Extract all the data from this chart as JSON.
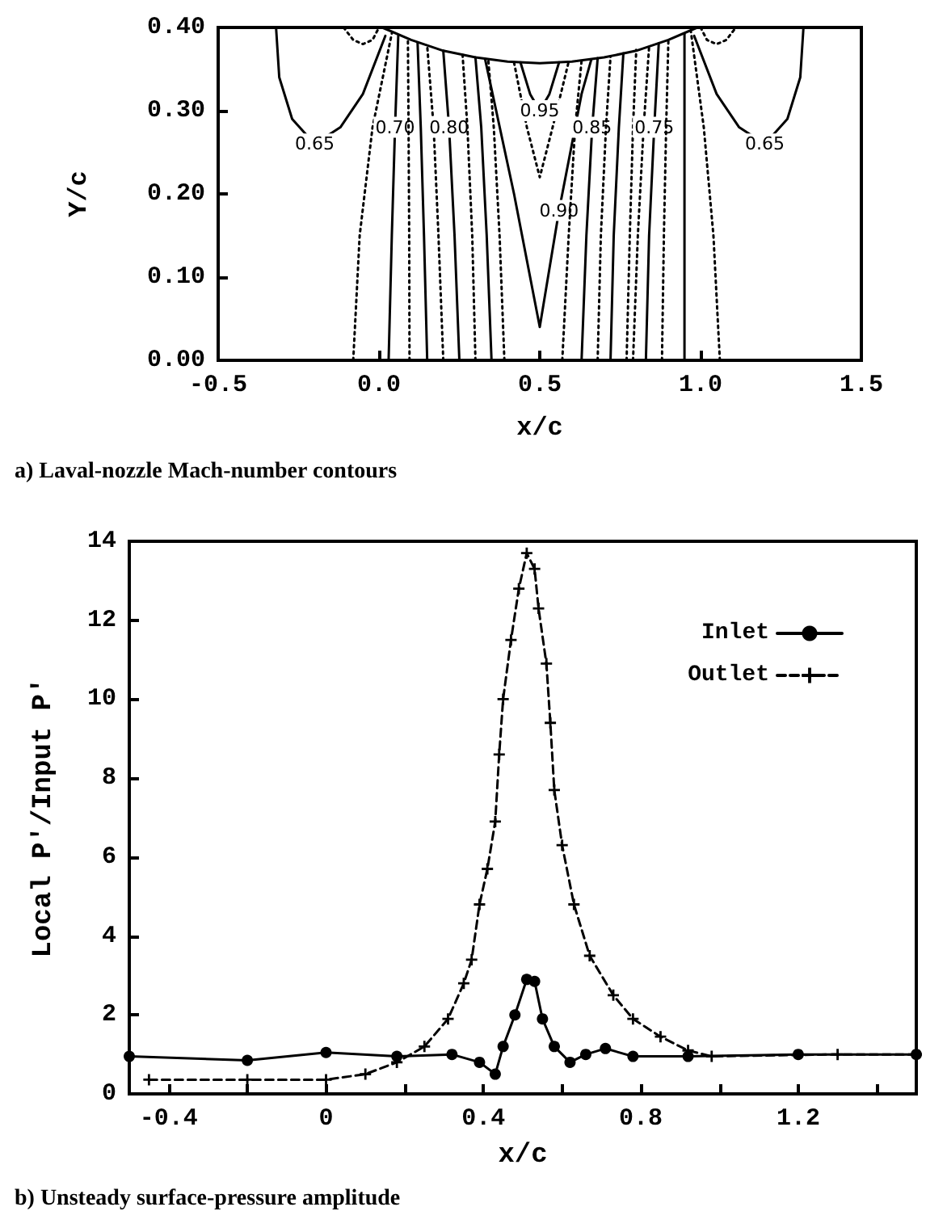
{
  "chart_data": [
    {
      "type": "line",
      "title": "a) Laval-nozzle Mach-number contours",
      "xlabel": "x/c",
      "ylabel": "Y/c",
      "xlim": [
        -0.5,
        1.5
      ],
      "xticks": [
        -0.5,
        {
          "value": 0,
          "label": "0.0"
        },
        0.5,
        {
          "value": 1,
          "label": "1.0"
        },
        1.5
      ],
      "ylim": [
        0,
        0.4
      ],
      "yticks": [
        {
          "value": 0,
          "label": "0.00"
        },
        {
          "value": 0.1,
          "label": "0.10"
        },
        {
          "value": 0.2,
          "label": "0.20"
        },
        {
          "value": 0.3,
          "label": "0.30"
        },
        {
          "value": 0.4,
          "label": "0.40"
        }
      ],
      "grid": false,
      "legend": false,
      "marker": "none",
      "series": [
        {
          "color": "#000000",
          "line_style": "solid",
          "x": [
            0.01,
            0.1,
            0.2,
            0.3,
            0.4,
            0.5,
            0.6,
            0.7,
            0.8,
            0.9,
            0.99
          ],
          "values": [
            0.4,
            0.385,
            0.372,
            0.364,
            0.359,
            0.357,
            0.359,
            0.364,
            0.372,
            0.385,
            0.4
          ]
        },
        {
          "name": "0.65",
          "color": "#000000",
          "line_style": "solid",
          "x": [
            -0.32,
            -0.31,
            -0.27,
            -0.2,
            -0.12,
            -0.05,
            0.02
          ],
          "values": [
            0.4,
            0.34,
            0.29,
            0.26,
            0.28,
            0.32,
            0.39
          ]
        },
        {
          "name": "0.65",
          "color": "#000000",
          "line_style": "solid",
          "x": [
            1.32,
            1.31,
            1.27,
            1.2,
            1.12,
            1.05,
            0.98
          ],
          "values": [
            0.4,
            0.34,
            0.29,
            0.26,
            0.28,
            0.32,
            0.39
          ]
        },
        {
          "color": "#000000",
          "line_style": "dotted",
          "x": [
            -0.11,
            -0.08,
            -0.05,
            -0.02,
            0.0
          ],
          "values": [
            0.4,
            0.385,
            0.38,
            0.385,
            0.4
          ]
        },
        {
          "color": "#000000",
          "line_style": "dotted",
          "x": [
            1.0,
            1.02,
            1.05,
            1.08,
            1.11
          ],
          "values": [
            0.4,
            0.385,
            0.38,
            0.385,
            0.4
          ]
        },
        {
          "color": "#000000",
          "line_style": "dotted",
          "x": [
            -0.08,
            -0.06,
            -0.02,
            0.04
          ],
          "values": [
            0,
            0.15,
            0.28,
            0.393
          ]
        },
        {
          "name": "0.70",
          "color": "#000000",
          "line_style": "solid",
          "x": [
            0.03,
            0.04,
            0.05,
            0.06
          ],
          "values": [
            0,
            0.15,
            0.28,
            0.39
          ]
        },
        {
          "color": "#000000",
          "line_style": "dotted",
          "x": [
            0.095,
            0.094,
            0.092,
            0.09
          ],
          "values": [
            0,
            0.15,
            0.28,
            0.386
          ]
        },
        {
          "color": "#000000",
          "line_style": "solid",
          "x": [
            0.15,
            0.14,
            0.13,
            0.12
          ],
          "values": [
            0,
            0.15,
            0.28,
            0.382
          ]
        },
        {
          "color": "#000000",
          "line_style": "dotted",
          "x": [
            0.2,
            0.185,
            0.17,
            0.15
          ],
          "values": [
            0,
            0.15,
            0.28,
            0.378
          ]
        },
        {
          "name": "0.80",
          "color": "#000000",
          "line_style": "solid",
          "x": [
            0.25,
            0.235,
            0.218,
            0.2
          ],
          "values": [
            0,
            0.15,
            0.28,
            0.372
          ]
        },
        {
          "color": "#000000",
          "line_style": "dotted",
          "x": [
            0.3,
            0.29,
            0.275,
            0.26
          ],
          "values": [
            0,
            0.15,
            0.28,
            0.367
          ]
        },
        {
          "color": "#000000",
          "line_style": "solid",
          "x": [
            0.35,
            0.335,
            0.318,
            0.3
          ],
          "values": [
            0,
            0.15,
            0.28,
            0.364
          ]
        },
        {
          "color": "#000000",
          "line_style": "dotted",
          "x": [
            0.39,
            0.375,
            0.357,
            0.34
          ],
          "values": [
            0,
            0.15,
            0.28,
            0.361
          ]
        },
        {
          "name": "0.90",
          "color": "#000000",
          "line_style": "solid",
          "x": [
            0.33,
            0.42,
            0.5,
            0.56,
            0.6,
            0.63,
            0.66
          ],
          "values": [
            0.362,
            0.2,
            0.04,
            0.18,
            0.26,
            0.32,
            0.361
          ]
        },
        {
          "color": "#000000",
          "line_style": "dotted",
          "x": [
            0.42,
            0.46,
            0.5,
            0.54,
            0.59
          ],
          "values": [
            0.358,
            0.28,
            0.22,
            0.28,
            0.359
          ]
        },
        {
          "name": "0.95",
          "color": "#000000",
          "line_style": "solid",
          "x": [
            0.44,
            0.47,
            0.5,
            0.53,
            0.56
          ],
          "values": [
            0.358,
            0.32,
            0.3,
            0.32,
            0.358
          ]
        },
        {
          "color": "#000000",
          "line_style": "dotted",
          "x": [
            0.57,
            0.59,
            0.61,
            0.63
          ],
          "values": [
            0,
            0.15,
            0.28,
            0.36
          ]
        },
        {
          "name": "0.85",
          "color": "#000000",
          "line_style": "solid",
          "x": [
            0.63,
            0.645,
            0.663,
            0.68
          ],
          "values": [
            0,
            0.15,
            0.28,
            0.363
          ]
        },
        {
          "color": "#000000",
          "line_style": "dotted",
          "x": [
            0.68,
            0.69,
            0.706,
            0.72
          ],
          "values": [
            0,
            0.15,
            0.28,
            0.365
          ]
        },
        {
          "color": "#000000",
          "line_style": "solid",
          "x": [
            0.72,
            0.73,
            0.746,
            0.76
          ],
          "values": [
            0,
            0.15,
            0.28,
            0.369
          ]
        },
        {
          "color": "#000000",
          "line_style": "dotted",
          "x": [
            0.77,
            0.78,
            0.79,
            0.8
          ],
          "values": [
            0,
            0.15,
            0.28,
            0.373
          ]
        },
        {
          "color": "#000000",
          "line_style": "dotted",
          "x": [
            0.79,
            0.805,
            0.823,
            0.84
          ],
          "values": [
            0,
            0.15,
            0.28,
            0.377
          ]
        },
        {
          "name": "0.75",
          "color": "#000000",
          "line_style": "solid",
          "x": [
            0.83,
            0.84,
            0.856,
            0.87
          ],
          "values": [
            0,
            0.15,
            0.28,
            0.381
          ]
        },
        {
          "color": "#000000",
          "line_style": "dotted",
          "x": [
            0.88,
            0.886,
            0.893,
            0.9
          ],
          "values": [
            0,
            0.15,
            0.28,
            0.385
          ]
        },
        {
          "color": "#000000",
          "line_style": "solid",
          "x": [
            0.95,
            0.95,
            0.95,
            0.95
          ],
          "values": [
            0,
            0.15,
            0.28,
            0.392
          ]
        },
        {
          "color": "#000000",
          "line_style": "dotted",
          "x": [
            1.06,
            1.04,
            1.01,
            0.97
          ],
          "values": [
            0,
            0.15,
            0.28,
            0.395
          ]
        }
      ]
    },
    {
      "type": "line",
      "title": "b) Unsteady surface-pressure amplitude",
      "xlabel": "x/c",
      "ylabel": "Local P'/Input P'",
      "xlim": [
        -0.5,
        1.5
      ],
      "xticks": [
        -0.4,
        {
          "value": -0.2,
          "label": null
        },
        0,
        {
          "value": 0.2,
          "label": null
        },
        0.4,
        {
          "value": 0.6,
          "label": null
        },
        0.8,
        {
          "value": 1.0,
          "label": null
        },
        1.2,
        {
          "value": 1.4,
          "label": null
        }
      ],
      "ylim": [
        0,
        14
      ],
      "yticks": [
        0,
        2,
        4,
        6,
        8,
        10,
        12,
        14
      ],
      "grid": false,
      "legend": "top right",
      "series": [
        {
          "name": "Inlet",
          "color": "#000000",
          "line_style": "solid",
          "marker": "circle",
          "x": [
            -0.5,
            -0.2,
            0,
            0.18,
            0.32,
            0.39,
            0.43,
            0.45,
            0.48,
            0.51,
            0.53,
            0.55,
            0.58,
            0.62,
            0.66,
            0.71,
            0.78,
            0.92,
            1.2,
            1.5
          ],
          "values": [
            0.95,
            0.85,
            1.05,
            0.95,
            1.0,
            0.8,
            0.5,
            1.2,
            2.0,
            2.9,
            2.85,
            1.9,
            1.2,
            0.8,
            1.0,
            1.15,
            0.95,
            0.95,
            1.0,
            1.0
          ]
        },
        {
          "name": "Outlet",
          "color": "#000000",
          "line_style": "dashed",
          "marker": "cross",
          "x": [
            -0.45,
            -0.2,
            0,
            0.1,
            0.18,
            0.25,
            0.31,
            0.35,
            0.37,
            0.39,
            0.41,
            0.43,
            0.44,
            0.45,
            0.47,
            0.49,
            0.51,
            0.53,
            0.54,
            0.56,
            0.57,
            0.58,
            0.6,
            0.63,
            0.67,
            0.73,
            0.78,
            0.85,
            0.92,
            0.98,
            1.3,
            1.5
          ],
          "values": [
            0.36,
            0.36,
            0.36,
            0.5,
            0.8,
            1.2,
            1.9,
            2.8,
            3.4,
            4.8,
            5.7,
            6.9,
            8.6,
            10.0,
            11.5,
            12.8,
            13.7,
            13.3,
            12.3,
            10.9,
            9.4,
            7.7,
            6.3,
            4.8,
            3.5,
            2.5,
            1.9,
            1.45,
            1.1,
            0.95,
            1.0,
            1.0
          ]
        }
      ]
    }
  ]
}
